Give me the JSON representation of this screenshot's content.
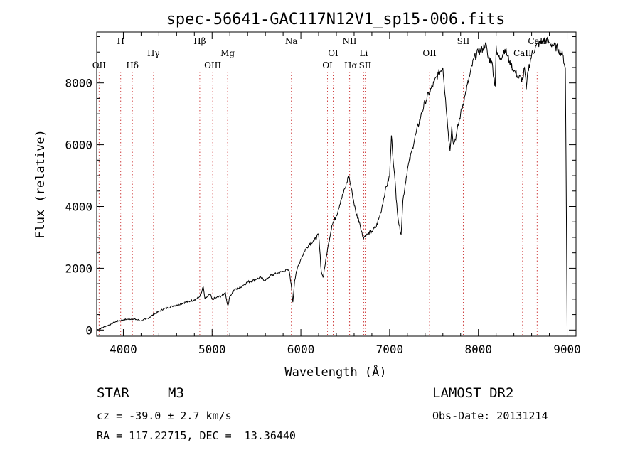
{
  "chart_data": {
    "type": "line",
    "title": "spec-56641-GAC117N12V1_sp15-006.fits",
    "xlabel": "Wavelength (Å)",
    "ylabel": "Flux (relative)",
    "xlim": [
      3700,
      9100
    ],
    "ylim": [
      -200,
      9650
    ],
    "xticks": [
      4000,
      5000,
      6000,
      7000,
      8000,
      9000
    ],
    "yticks": [
      0,
      2000,
      4000,
      6000,
      8000
    ],
    "grid": false,
    "series": [
      {
        "x": [
          3700,
          3750,
          3800,
          3850,
          3900,
          3950,
          4000,
          4050,
          4100,
          4150,
          4200,
          4250,
          4300,
          4350,
          4400,
          4450,
          4500,
          4550,
          4600,
          4650,
          4700,
          4750,
          4800,
          4850,
          4880,
          4900,
          4920,
          4950,
          4980,
          5000,
          5050,
          5100,
          5150,
          5170,
          5180,
          5200,
          5250,
          5300,
          5350,
          5400,
          5450,
          5500,
          5550,
          5600,
          5650,
          5700,
          5750,
          5800,
          5850,
          5870,
          5890,
          5910,
          5930,
          5950,
          6000,
          6050,
          6100,
          6150,
          6200,
          6230,
          6250,
          6300,
          6350,
          6400,
          6450,
          6500,
          6540,
          6560,
          6580,
          6620,
          6660,
          6700,
          6750,
          6800,
          6850,
          6900,
          6950,
          7000,
          7020,
          7050,
          7080,
          7100,
          7130,
          7150,
          7200,
          7250,
          7300,
          7350,
          7400,
          7450,
          7500,
          7550,
          7600,
          7630,
          7660,
          7680,
          7700,
          7720,
          7750,
          7800,
          7850,
          7900,
          7950,
          8000,
          8050,
          8080,
          8110,
          8150,
          8190,
          8200,
          8210,
          8250,
          8300,
          8350,
          8400,
          8450,
          8500,
          8520,
          8540,
          8560,
          8600,
          8650,
          8700,
          8750,
          8800,
          8850,
          8900,
          8950,
          8980,
          9000
        ],
        "values": [
          0,
          60,
          120,
          180,
          250,
          300,
          330,
          350,
          360,
          340,
          300,
          350,
          420,
          520,
          600,
          680,
          720,
          770,
          810,
          850,
          900,
          930,
          980,
          1050,
          1200,
          1400,
          1000,
          1100,
          1150,
          1000,
          1050,
          1100,
          1200,
          850,
          800,
          1100,
          1300,
          1350,
          1450,
          1550,
          1600,
          1650,
          1700,
          1600,
          1750,
          1800,
          1850,
          1900,
          1950,
          1900,
          1500,
          900,
          1600,
          1900,
          2300,
          2600,
          2800,
          2900,
          3100,
          1900,
          1700,
          2600,
          3400,
          3700,
          4200,
          4600,
          5000,
          4700,
          4400,
          3800,
          3500,
          3000,
          3100,
          3200,
          3350,
          3800,
          4500,
          5000,
          6300,
          5200,
          4100,
          3500,
          3100,
          4200,
          5200,
          5800,
          6400,
          6900,
          7400,
          7700,
          8000,
          8300,
          8500,
          7500,
          6400,
          5800,
          6600,
          6000,
          6300,
          7000,
          7600,
          8200,
          8800,
          9000,
          9100,
          9300,
          8800,
          8700,
          7900,
          9200,
          8900,
          8800,
          9100,
          8700,
          8400,
          8200,
          8100,
          8500,
          7800,
          8400,
          8900,
          9200,
          9300,
          9400,
          9300,
          9200,
          9100,
          8900,
          8500,
          100
        ]
      }
    ],
    "lines": [
      {
        "x": 3727,
        "label": "OII",
        "row": 3
      },
      {
        "x": 3970,
        "label": "H",
        "row": 1
      },
      {
        "x": 4102,
        "label": "Hδ",
        "row": 3
      },
      {
        "x": 4340,
        "label": "Hγ",
        "row": 2
      },
      {
        "x": 4861,
        "label": "Hβ",
        "row": 1
      },
      {
        "x": 5007,
        "label": "OIII",
        "row": 3
      },
      {
        "x": 5175,
        "label": "Mg",
        "row": 2
      },
      {
        "x": 5893,
        "label": "Na",
        "row": 1
      },
      {
        "x": 6300,
        "label": "OI",
        "row": 3
      },
      {
        "x": 6364,
        "label": "OI",
        "row": 2
      },
      {
        "x": 6548,
        "label": "NII",
        "row": 1
      },
      {
        "x": 6563,
        "label": "Hα",
        "row": 3
      },
      {
        "x": 6708,
        "label": "Li",
        "row": 2
      },
      {
        "x": 6724,
        "label": "SII",
        "row": 3
      },
      {
        "x": 7450,
        "label": "OII",
        "row": 2
      },
      {
        "x": 7830,
        "label": "SII",
        "row": 1
      },
      {
        "x": 8498,
        "label": "CaII",
        "row": 2
      },
      {
        "x": 8662,
        "label": "CaII",
        "row": 1
      }
    ]
  },
  "info": {
    "object_class": "STAR",
    "subclass": "M3",
    "survey": "LAMOST DR2",
    "cz": "cz = -39.0 ± 2.7 km/s",
    "obs_date": "Obs-Date: 20131214",
    "coords": "RA = 117.22715, DEC =  13.36440"
  }
}
